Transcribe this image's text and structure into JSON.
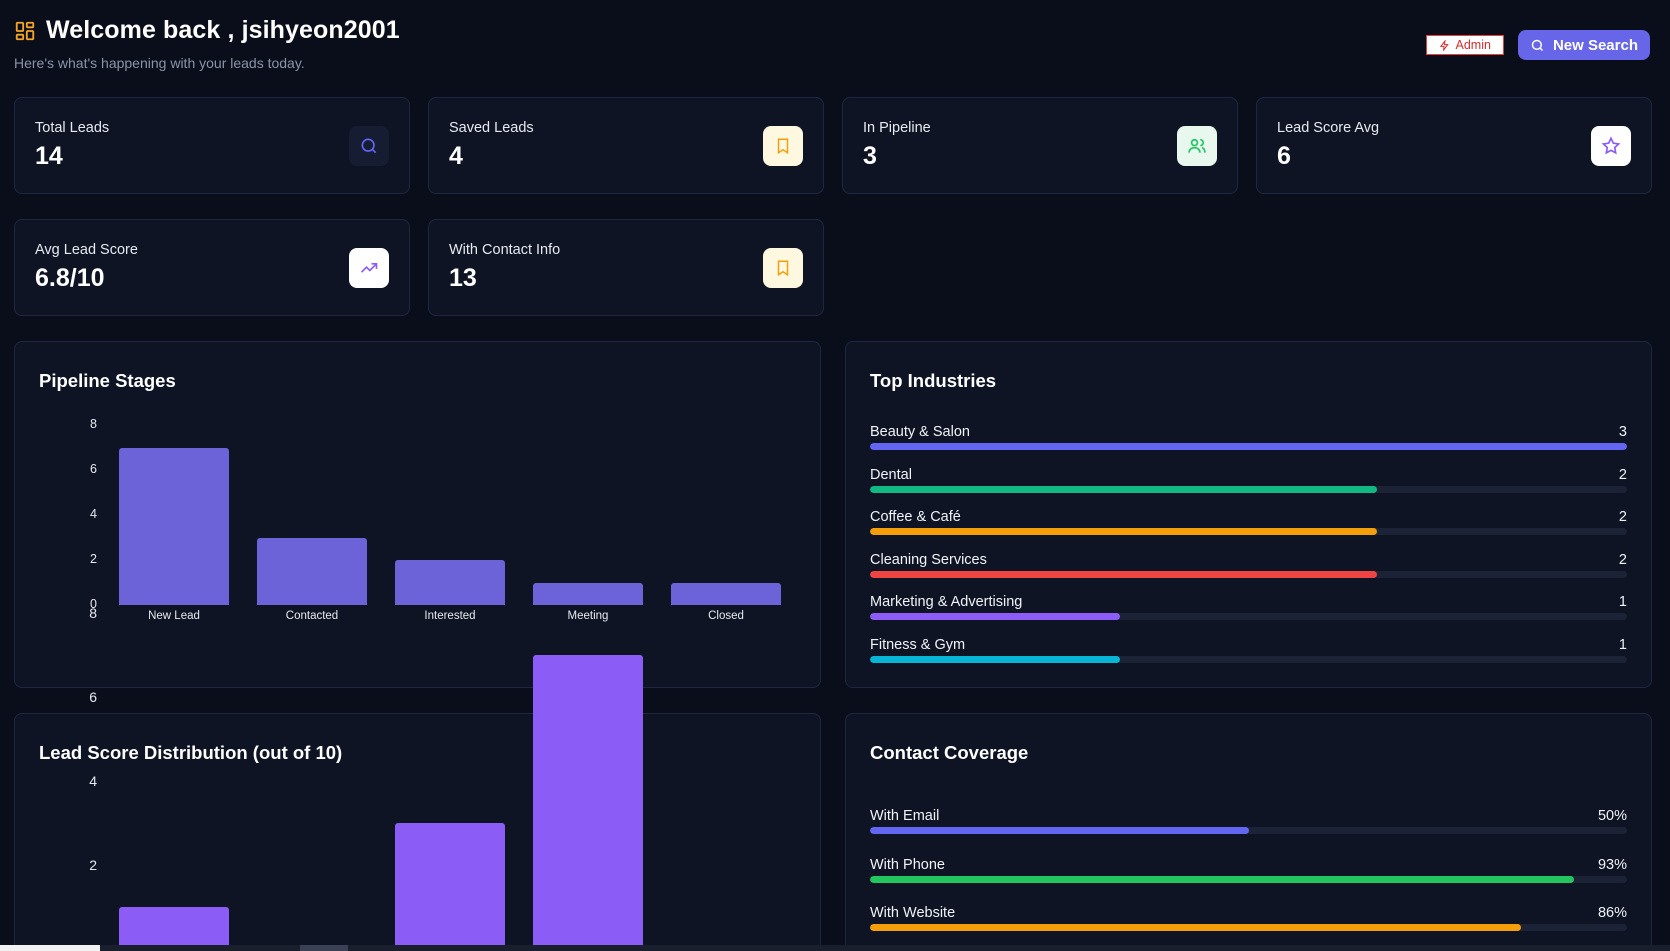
{
  "header": {
    "title": "Welcome back , jsihyeon2001",
    "subtitle": "Here's what's happening with your leads today.",
    "admin_label": "Admin",
    "new_search_label": "New Search"
  },
  "stats": [
    {
      "label": "Total Leads",
      "value": "14",
      "icon": "search-icon"
    },
    {
      "label": "Saved Leads",
      "value": "4",
      "icon": "bookmark-icon"
    },
    {
      "label": "In Pipeline",
      "value": "3",
      "icon": "users-icon"
    },
    {
      "label": "Lead Score Avg",
      "value": "6",
      "icon": "star-icon"
    },
    {
      "label": "Avg Lead Score",
      "value": "6.8/10",
      "icon": "trending-up-icon"
    },
    {
      "label": "With Contact Info",
      "value": "13",
      "icon": "bookmark-icon"
    }
  ],
  "pipeline": {
    "title": "Pipeline Stages"
  },
  "industries": {
    "title": "Top Industries",
    "items": [
      {
        "label": "Beauty & Salon",
        "count": "3",
        "fraction": 1.0,
        "color": "#6366f1"
      },
      {
        "label": "Dental",
        "count": "2",
        "fraction": 0.67,
        "color": "#10b981"
      },
      {
        "label": "Coffee & Café",
        "count": "2",
        "fraction": 0.67,
        "color": "#f59e0b"
      },
      {
        "label": "Cleaning Services",
        "count": "2",
        "fraction": 0.67,
        "color": "#ef4444"
      },
      {
        "label": "Marketing & Advertising",
        "count": "1",
        "fraction": 0.33,
        "color": "#8b5cf6"
      },
      {
        "label": "Fitness & Gym",
        "count": "1",
        "fraction": 0.33,
        "color": "#06b6d4"
      }
    ]
  },
  "score_dist": {
    "title": "Lead Score Distribution (out of 10)"
  },
  "coverage": {
    "title": "Contact Coverage",
    "items": [
      {
        "label": "With Email",
        "percent": "50%",
        "fraction": 0.5,
        "color": "#6366f1"
      },
      {
        "label": "With Phone",
        "percent": "93%",
        "fraction": 0.93,
        "color": "#22c55e"
      },
      {
        "label": "With Website",
        "percent": "86%",
        "fraction": 0.86,
        "color": "#f59e0b"
      }
    ]
  },
  "chart_data": [
    {
      "type": "bar",
      "title": "Pipeline Stages",
      "categories": [
        "New Lead",
        "Contacted",
        "Interested",
        "Meeting",
        "Closed"
      ],
      "values": [
        7,
        3,
        2,
        1,
        1
      ],
      "ylim": [
        0,
        8
      ],
      "yticks": [
        "0",
        "2",
        "4",
        "6",
        "8"
      ],
      "color": "#6c63d9"
    },
    {
      "type": "bar",
      "title": "Lead Score Distribution (out of 10)",
      "values": [
        1,
        0,
        3,
        7
      ],
      "ylim": [
        0,
        8
      ],
      "yticks": [
        "2",
        "4",
        "6",
        "8"
      ],
      "color": "#8b5cf6"
    }
  ]
}
